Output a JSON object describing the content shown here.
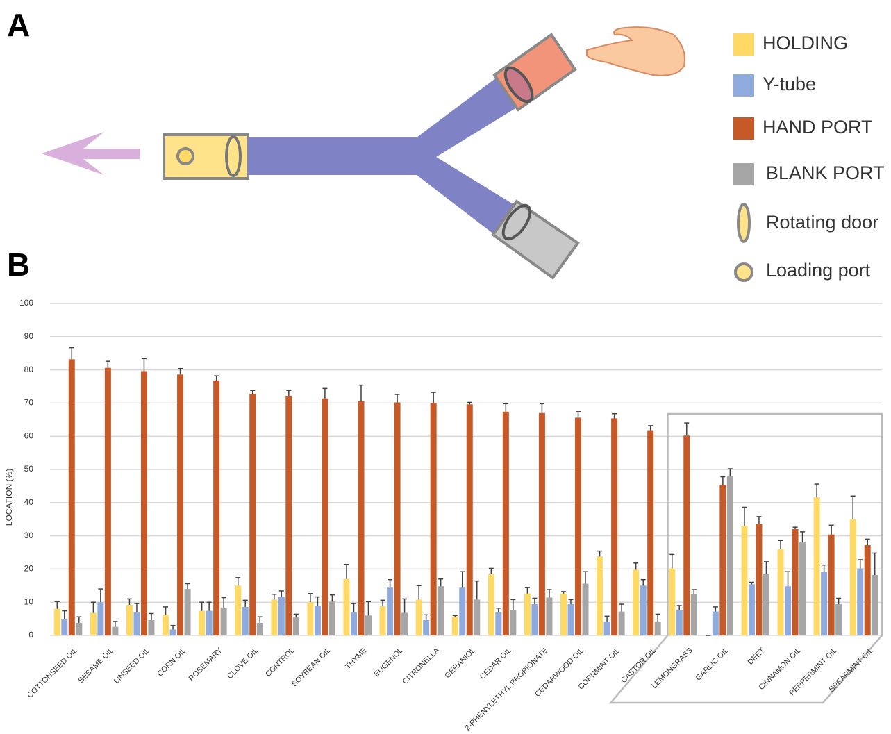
{
  "panel_labels": [
    "A",
    "B"
  ],
  "diagram": {
    "legend_extra": [
      "Rotating door",
      "Loading port"
    ]
  },
  "chart_data": {
    "type": "bar",
    "ylabel": "LOCATION (%)",
    "ylim": [
      0,
      100
    ],
    "yticks": [
      0,
      10,
      20,
      30,
      40,
      50,
      60,
      70,
      80,
      90,
      100
    ],
    "grid": true,
    "categories": [
      "COTTONSEED OIL",
      "SESAME OIL",
      "LINSEED OIL",
      "CORN OIL",
      "ROSEMARY",
      "CLOVE OIL",
      "CONTROL",
      "SOYBEAN OIL",
      "THYME",
      "EUGENOL",
      "CITRONELLA",
      "GERANIOL",
      "CEDAR OIL",
      "2-PHENYLETHYL PROPIONATE",
      "CEDARWOOD OIL",
      "CORNMINT OIL",
      "CASTOR OIL",
      "LEMONGRASS",
      "GARLIC OIL",
      "DEET",
      "CINNAMON OIL",
      "PEPPERMINT OIL",
      "SPEARMINT OIL"
    ],
    "series": [
      {
        "name": "HOLDING",
        "color": "#ffd966",
        "values": [
          8,
          6.8,
          9.2,
          6.2,
          7.4,
          15,
          10.8,
          10,
          17,
          8.8,
          10.8,
          5.6,
          18.4,
          12.6,
          12.6,
          23.8,
          19.8,
          20.2,
          0,
          33,
          26,
          41.6,
          35
        ],
        "errors": [
          2.2,
          3.2,
          1.8,
          2.4,
          2.6,
          2.4,
          1.6,
          2.6,
          4.4,
          1.8,
          4.2,
          0.4,
          1.8,
          1.8,
          0.6,
          1.6,
          2,
          4.2,
          0,
          5.6,
          2.6,
          4,
          7
        ]
      },
      {
        "name": "Y-tube",
        "color": "#8faadc",
        "values": [
          4.8,
          10,
          7,
          1.8,
          7.4,
          8.6,
          11.6,
          9,
          7,
          14.4,
          4.6,
          14.4,
          7,
          9.4,
          9.4,
          4.2,
          15,
          7.6,
          7.2,
          15.4,
          14.8,
          19.2,
          20.2
        ],
        "errors": [
          2.6,
          4,
          2.6,
          1.2,
          2.6,
          2,
          1.8,
          2.6,
          2.6,
          2.4,
          1.6,
          4.8,
          1.2,
          1.8,
          1.4,
          1.6,
          1.8,
          1.4,
          1.4,
          0.6,
          4.4,
          2,
          2.6
        ]
      },
      {
        "name": "HAND PORT",
        "color": "#c55a28",
        "values": [
          83.2,
          80.6,
          79.6,
          78.6,
          76.8,
          72.8,
          72.2,
          71.4,
          70.6,
          70.2,
          70,
          69.6,
          67.4,
          67,
          65.6,
          65.4,
          61.8,
          60.2,
          45.4,
          33.6,
          32,
          30.4,
          27.2
        ],
        "errors": [
          3.5,
          2,
          3.8,
          1.8,
          1.4,
          1,
          1.6,
          3,
          4.8,
          2.4,
          3.2,
          0.6,
          2.4,
          2.8,
          1.8,
          1.4,
          1.4,
          3.8,
          2.4,
          2.2,
          0.6,
          2.8,
          1.8
        ]
      },
      {
        "name": "BLANK PORT",
        "color": "#a6a6a6",
        "values": [
          3.8,
          2.6,
          4.6,
          14,
          8.4,
          3.8,
          5.4,
          10.2,
          6,
          6.8,
          14.8,
          10.8,
          7.6,
          11.4,
          15.6,
          7.2,
          4.2,
          12.4,
          48,
          18.4,
          28,
          9.4,
          18.2
        ],
        "errors": [
          1.8,
          1.6,
          2,
          1.6,
          3,
          1.8,
          1,
          2,
          4.2,
          4.2,
          2.2,
          5.6,
          3.2,
          2.4,
          3.6,
          2.2,
          2.2,
          1.4,
          2.2,
          3.8,
          3.2,
          1.8,
          6.6
        ]
      }
    ]
  }
}
